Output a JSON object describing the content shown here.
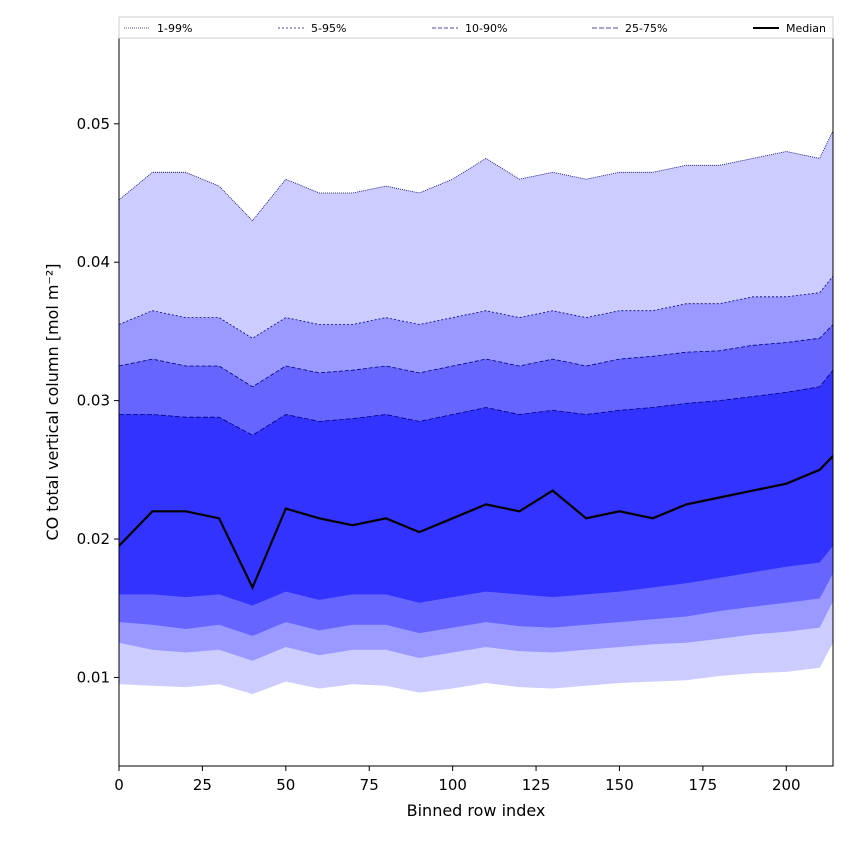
{
  "chart_data": {
    "type": "area",
    "xlabel": "Binned row index",
    "ylabel": "CO total vertical column [mol m⁻²]",
    "xlim": [
      0,
      214
    ],
    "ylim": [
      0.0036,
      0.0562
    ],
    "xticks": [
      0,
      25,
      50,
      75,
      100,
      125,
      150,
      175,
      200
    ],
    "yticks": [
      0.01,
      0.02,
      0.03,
      0.04,
      0.05
    ],
    "ytick_labels": [
      "0.01",
      "0.02",
      "0.03",
      "0.04",
      "0.05"
    ],
    "legend_position": "top, spanning full width",
    "colors": {
      "band_1_99": "#ccccff",
      "band_5_95": "#9999ff",
      "band_10_90": "#6666ff",
      "band_25_75": "#3333ff",
      "median": "#000000",
      "outline": "#00007a"
    },
    "x": [
      0,
      10,
      20,
      30,
      40,
      50,
      60,
      70,
      80,
      90,
      100,
      110,
      120,
      130,
      140,
      150,
      160,
      170,
      180,
      190,
      200,
      210,
      214
    ],
    "series": [
      {
        "name": "1-99%",
        "lower": [
          0.0095,
          0.0094,
          0.0093,
          0.0095,
          0.0088,
          0.0097,
          0.0092,
          0.0095,
          0.0094,
          0.0089,
          0.0092,
          0.0096,
          0.0093,
          0.0092,
          0.0094,
          0.0096,
          0.0097,
          0.0098,
          0.0101,
          0.0103,
          0.0104,
          0.0107,
          0.0125
        ],
        "upper": [
          0.0445,
          0.0465,
          0.0465,
          0.0455,
          0.043,
          0.046,
          0.045,
          0.045,
          0.0455,
          0.045,
          0.046,
          0.0475,
          0.046,
          0.0465,
          0.046,
          0.0465,
          0.0465,
          0.047,
          0.047,
          0.0475,
          0.048,
          0.0475,
          0.0495
        ]
      },
      {
        "name": "5-95%",
        "lower": [
          0.0125,
          0.012,
          0.0118,
          0.012,
          0.0112,
          0.0122,
          0.0116,
          0.012,
          0.012,
          0.0114,
          0.0118,
          0.0122,
          0.0119,
          0.0118,
          0.012,
          0.0122,
          0.0124,
          0.0125,
          0.0128,
          0.0131,
          0.0133,
          0.0136,
          0.0155
        ],
        "upper": [
          0.0355,
          0.0365,
          0.036,
          0.036,
          0.0345,
          0.036,
          0.0355,
          0.0355,
          0.036,
          0.0355,
          0.036,
          0.0365,
          0.036,
          0.0365,
          0.036,
          0.0365,
          0.0365,
          0.037,
          0.037,
          0.0375,
          0.0375,
          0.0378,
          0.039
        ]
      },
      {
        "name": "10-90%",
        "lower": [
          0.014,
          0.0138,
          0.0135,
          0.0138,
          0.013,
          0.014,
          0.0134,
          0.0138,
          0.0138,
          0.0132,
          0.0136,
          0.014,
          0.0137,
          0.0136,
          0.0138,
          0.014,
          0.0142,
          0.0144,
          0.0148,
          0.0151,
          0.0154,
          0.0157,
          0.0175
        ],
        "upper": [
          0.0325,
          0.033,
          0.0325,
          0.0325,
          0.031,
          0.0325,
          0.032,
          0.0322,
          0.0325,
          0.032,
          0.0325,
          0.033,
          0.0325,
          0.033,
          0.0325,
          0.033,
          0.0332,
          0.0335,
          0.0336,
          0.034,
          0.0342,
          0.0345,
          0.0355
        ]
      },
      {
        "name": "25-75%",
        "lower": [
          0.016,
          0.016,
          0.0158,
          0.016,
          0.0152,
          0.0162,
          0.0156,
          0.016,
          0.016,
          0.0154,
          0.0158,
          0.0162,
          0.016,
          0.0158,
          0.016,
          0.0162,
          0.0165,
          0.0168,
          0.0172,
          0.0176,
          0.018,
          0.0183,
          0.0195
        ],
        "upper": [
          0.029,
          0.029,
          0.0288,
          0.0288,
          0.0275,
          0.029,
          0.0285,
          0.0287,
          0.029,
          0.0285,
          0.029,
          0.0295,
          0.029,
          0.0293,
          0.029,
          0.0293,
          0.0295,
          0.0298,
          0.03,
          0.0303,
          0.0306,
          0.031,
          0.0322
        ]
      },
      {
        "name": "Median",
        "values": [
          0.0195,
          0.022,
          0.022,
          0.0215,
          0.0165,
          0.0222,
          0.0215,
          0.021,
          0.0215,
          0.0205,
          0.0215,
          0.0225,
          0.022,
          0.0235,
          0.0215,
          0.022,
          0.0215,
          0.0225,
          0.023,
          0.0235,
          0.024,
          0.025,
          0.026
        ]
      }
    ]
  }
}
